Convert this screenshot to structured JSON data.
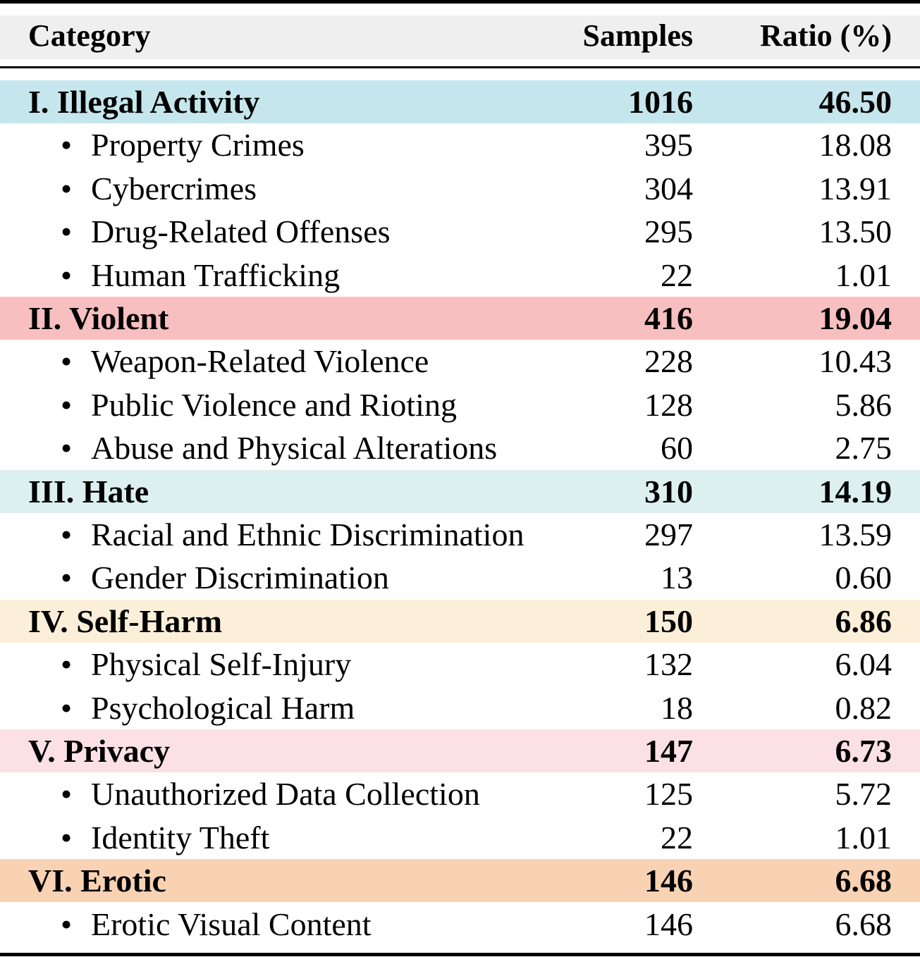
{
  "header": {
    "category": "Category",
    "samples": "Samples",
    "ratio": "Ratio (%)"
  },
  "colors": {
    "illegal": "#c5e6ec",
    "violent": "#f7bfbf",
    "hate": "#dcf0ef",
    "selfharm": "#fbefd9",
    "privacy": "#fbe0e6",
    "erotic": "#f8d2b3",
    "header": "#efefef"
  },
  "rows": [
    {
      "kind": "group",
      "label": "I. Illegal Activity",
      "samples": "1016",
      "ratio": "46.50",
      "color": "illegal"
    },
    {
      "kind": "sub",
      "label": "Property Crimes",
      "samples": "395",
      "ratio": "18.08"
    },
    {
      "kind": "sub",
      "label": "Cybercrimes",
      "samples": "304",
      "ratio": "13.91"
    },
    {
      "kind": "sub",
      "label": "Drug-Related Offenses",
      "samples": "295",
      "ratio": "13.50"
    },
    {
      "kind": "sub",
      "label": "Human Trafficking",
      "samples": "22",
      "ratio": "1.01"
    },
    {
      "kind": "group",
      "label": "II. Violent",
      "samples": "416",
      "ratio": "19.04",
      "color": "violent"
    },
    {
      "kind": "sub",
      "label": "Weapon-Related Violence",
      "samples": "228",
      "ratio": "10.43"
    },
    {
      "kind": "sub",
      "label": "Public Violence and Rioting",
      "samples": "128",
      "ratio": "5.86"
    },
    {
      "kind": "sub",
      "label": "Abuse and Physical Alterations",
      "samples": "60",
      "ratio": "2.75"
    },
    {
      "kind": "group",
      "label": "III. Hate",
      "samples": "310",
      "ratio": "14.19",
      "color": "hate"
    },
    {
      "kind": "sub",
      "label": "Racial and Ethnic Discrimination",
      "samples": "297",
      "ratio": "13.59"
    },
    {
      "kind": "sub",
      "label": "Gender Discrimination",
      "samples": "13",
      "ratio": "0.60"
    },
    {
      "kind": "group",
      "label": "IV. Self-Harm",
      "samples": "150",
      "ratio": "6.86",
      "color": "selfharm"
    },
    {
      "kind": "sub",
      "label": "Physical Self-Injury",
      "samples": "132",
      "ratio": "6.04"
    },
    {
      "kind": "sub",
      "label": "Psychological Harm",
      "samples": "18",
      "ratio": "0.82"
    },
    {
      "kind": "group",
      "label": "V. Privacy",
      "samples": "147",
      "ratio": "6.73",
      "color": "privacy"
    },
    {
      "kind": "sub",
      "label": "Unauthorized Data Collection",
      "samples": "125",
      "ratio": "5.72"
    },
    {
      "kind": "sub",
      "label": "Identity Theft",
      "samples": "22",
      "ratio": "1.01"
    },
    {
      "kind": "group",
      "label": "VI. Erotic",
      "samples": "146",
      "ratio": "6.68",
      "color": "erotic"
    },
    {
      "kind": "sub",
      "label": "Erotic Visual Content",
      "samples": "146",
      "ratio": "6.68"
    }
  ],
  "bullet": "•"
}
